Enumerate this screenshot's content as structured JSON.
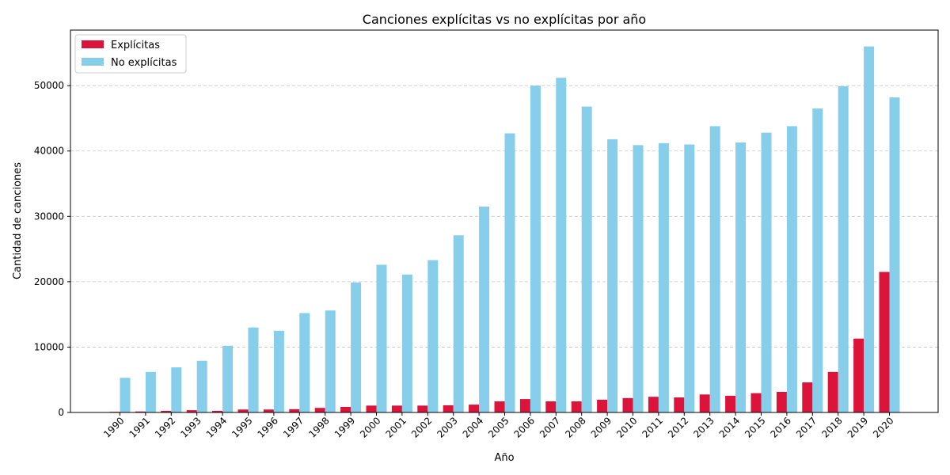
{
  "chart_data": {
    "type": "bar",
    "title": "Canciones explícitas vs no explícitas por año",
    "xlabel": "Año",
    "ylabel": "Cantidad de canciones",
    "ylim": [
      0,
      58500
    ],
    "yticks": [
      0,
      10000,
      20000,
      30000,
      40000,
      50000
    ],
    "grid": "horizontal dashed",
    "legend_position": "top-left",
    "categories": [
      "1990",
      "1991",
      "1992",
      "1993",
      "1994",
      "1995",
      "1996",
      "1997",
      "1998",
      "1999",
      "2000",
      "2001",
      "2002",
      "2003",
      "2004",
      "2005",
      "2006",
      "2007",
      "2008",
      "2009",
      "2010",
      "2011",
      "2012",
      "2013",
      "2014",
      "2015",
      "2016",
      "2017",
      "2018",
      "2019",
      "2020"
    ],
    "series": [
      {
        "name": "Explícitas",
        "color": "#dc143c",
        "values": [
          100,
          150,
          250,
          350,
          250,
          450,
          450,
          500,
          700,
          850,
          1050,
          1050,
          1050,
          1100,
          1200,
          1700,
          2050,
          1700,
          1700,
          1950,
          2200,
          2400,
          2300,
          2750,
          2550,
          2950,
          3150,
          4600,
          6200,
          11300,
          21500
        ]
      },
      {
        "name": "No explícitas",
        "color": "#87ceeb",
        "values": [
          5300,
          6200,
          6900,
          7900,
          10200,
          13000,
          12500,
          15200,
          15600,
          19900,
          22600,
          21100,
          23300,
          27100,
          31500,
          42700,
          50000,
          51200,
          46800,
          41800,
          40900,
          41200,
          41000,
          43800,
          41300,
          42800,
          43800,
          46500,
          49900,
          56000,
          48200
        ]
      }
    ]
  }
}
